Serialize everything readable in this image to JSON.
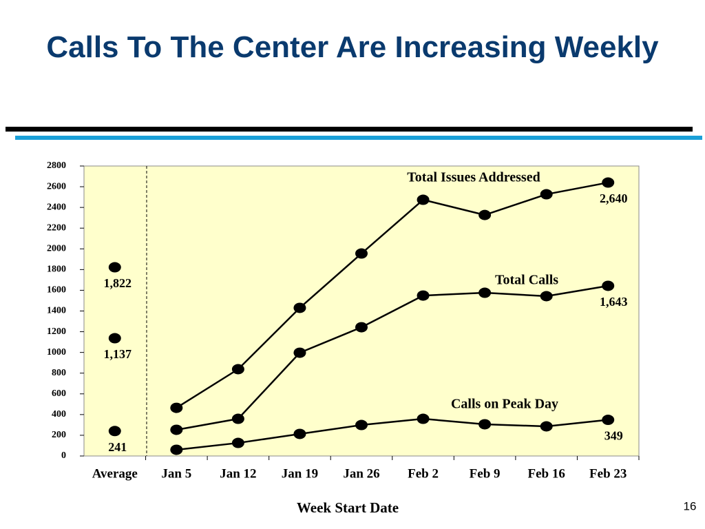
{
  "slide_title": "Calls To The Center Are Increasing Weekly",
  "page_number": "16",
  "chart_data": {
    "type": "line",
    "xlabel": "Week Start Date",
    "categories": [
      "Average",
      "Jan 5",
      "Jan 12",
      "Jan 19",
      "Jan 26",
      "Feb 2",
      "Feb 9",
      "Feb 16",
      "Feb 23"
    ],
    "ylim": [
      0,
      2800
    ],
    "yticks": [
      0,
      200,
      400,
      600,
      800,
      1000,
      1200,
      1400,
      1600,
      1800,
      2000,
      2200,
      2400,
      2600,
      2800
    ],
    "series": [
      {
        "name": "Total Issues Addressed",
        "color": "#000000",
        "values": [
          1822,
          465,
          838,
          1430,
          1955,
          2474,
          2327,
          2527,
          2640
        ],
        "value_labels": [
          "1,822",
          null,
          null,
          null,
          null,
          null,
          null,
          null,
          "2,640"
        ]
      },
      {
        "name": "Total Calls",
        "color": "#000000",
        "values": [
          1137,
          253,
          359,
          997,
          1243,
          1549,
          1576,
          1543,
          1643
        ],
        "value_labels": [
          "1,137",
          null,
          null,
          null,
          null,
          null,
          null,
          null,
          "1,643"
        ]
      },
      {
        "name": "Calls on Peak Day",
        "color": "#000000",
        "values": [
          241,
          60,
          126,
          213,
          299,
          359,
          306,
          286,
          349
        ],
        "value_labels": [
          "241",
          null,
          null,
          null,
          null,
          null,
          null,
          null,
          "349"
        ]
      }
    ]
  }
}
